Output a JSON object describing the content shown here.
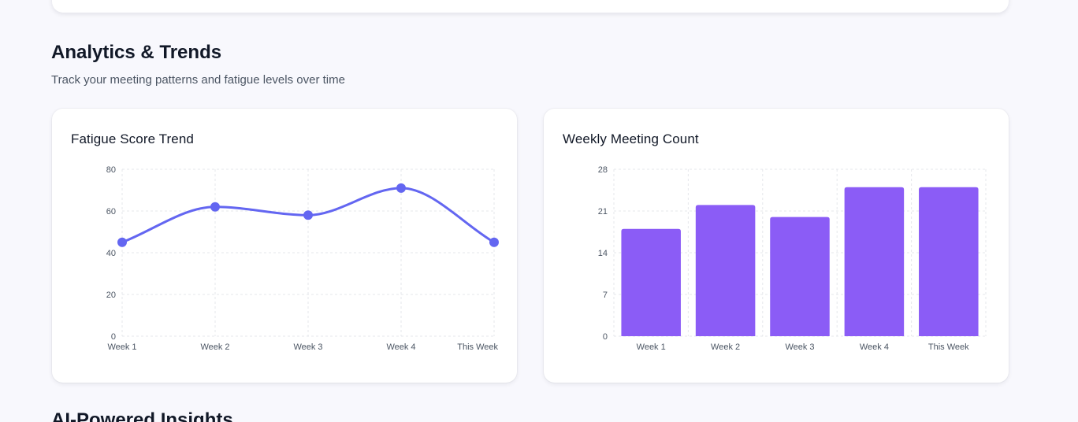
{
  "analytics": {
    "title": "Analytics & Trends",
    "subtitle": "Track your meeting patterns and fatigue levels over time"
  },
  "next_section": {
    "title": "AI-Powered Insights"
  },
  "colors": {
    "line": "#6366f1",
    "bar": "#8b5cf6",
    "grid": "#e5e7eb"
  },
  "chart_data": [
    {
      "type": "line",
      "title": "Fatigue Score Trend",
      "categories": [
        "Week 1",
        "Week 2",
        "Week 3",
        "Week 4",
        "This Week"
      ],
      "series": [
        {
          "values": [
            45,
            62,
            58,
            71,
            45
          ]
        }
      ],
      "ylim": [
        0,
        80
      ],
      "yticks": [
        0,
        20,
        40,
        60,
        80
      ],
      "grid": true,
      "smooth": true
    },
    {
      "type": "bar",
      "title": "Weekly Meeting Count",
      "categories": [
        "Week 1",
        "Week 2",
        "Week 3",
        "Week 4",
        "This Week"
      ],
      "values": [
        18,
        22,
        20,
        25,
        25
      ],
      "ylim": [
        0,
        28
      ],
      "yticks": [
        0,
        7,
        14,
        21,
        28
      ],
      "grid": true
    }
  ]
}
